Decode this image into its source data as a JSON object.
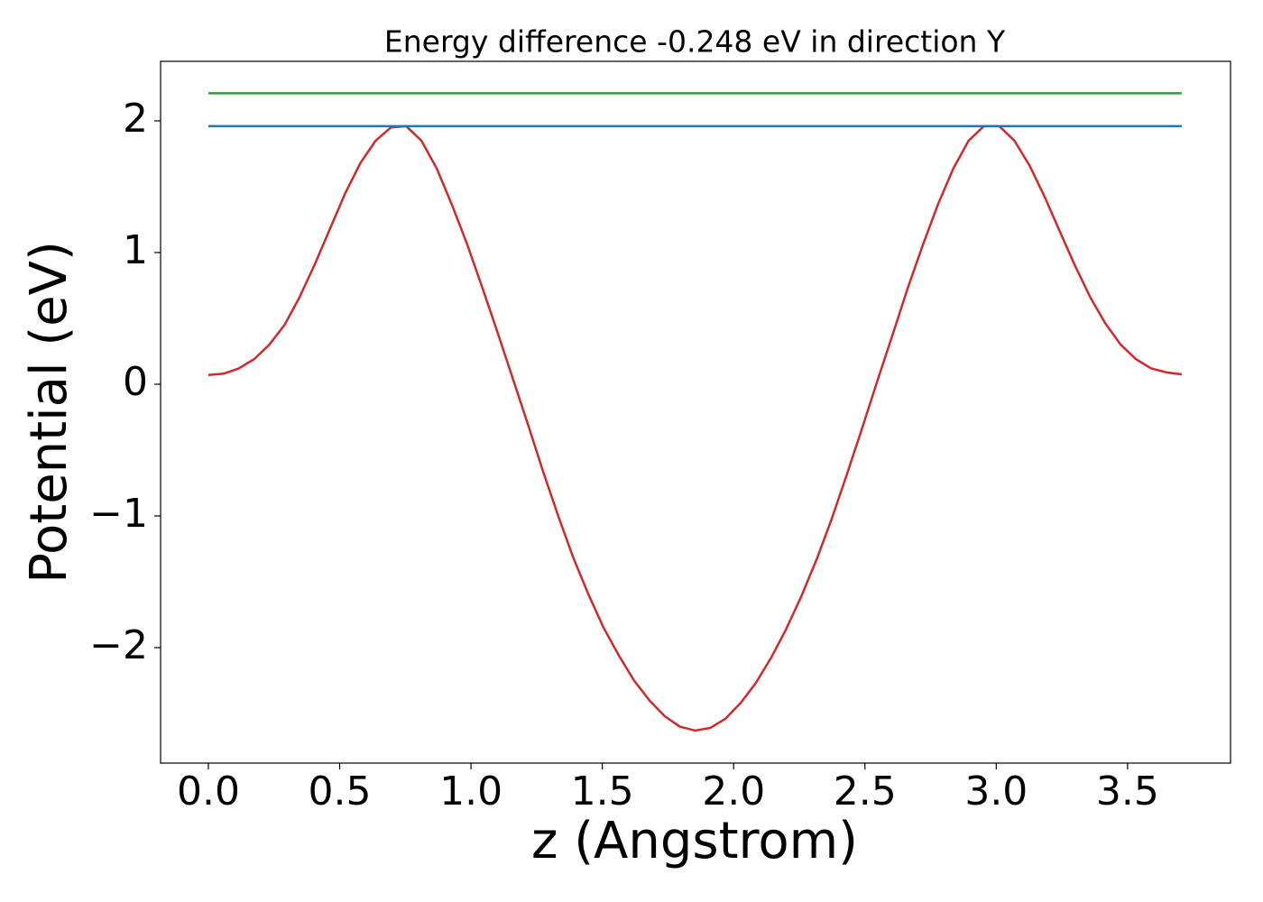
{
  "chart_data": {
    "type": "line",
    "title": "Energy difference -0.248 eV in direction Y",
    "xlabel": "z (Angstrom)",
    "ylabel": "Potential (eV)",
    "series": [
      {
        "color": "#d62728",
        "x": [
          0,
          0.058,
          0.116,
          0.174,
          0.232,
          0.29,
          0.347,
          0.405,
          0.463,
          0.521,
          0.579,
          0.637,
          0.695,
          0.753,
          0.811,
          0.869,
          0.926,
          0.984,
          1.042,
          1.1,
          1.158,
          1.216,
          1.274,
          1.332,
          1.39,
          1.448,
          1.505,
          1.563,
          1.621,
          1.679,
          1.737,
          1.795,
          1.853,
          1.911,
          1.969,
          2.027,
          2.084,
          2.142,
          2.2,
          2.258,
          2.316,
          2.374,
          2.432,
          2.49,
          2.548,
          2.606,
          2.663,
          2.721,
          2.779,
          2.837,
          2.895,
          2.953,
          3.011,
          3.069,
          3.127,
          3.185,
          3.242,
          3.3,
          3.358,
          3.416,
          3.474,
          3.532,
          3.59,
          3.648,
          3.706
        ],
        "values": [
          0.07,
          0.08,
          0.12,
          0.19,
          0.3,
          0.45,
          0.66,
          0.91,
          1.18,
          1.45,
          1.68,
          1.85,
          1.95,
          1.96,
          1.85,
          1.64,
          1.37,
          1.07,
          0.74,
          0.4,
          0.05,
          -0.3,
          -0.66,
          -1.0,
          -1.32,
          -1.6,
          -1.85,
          -2.06,
          -2.25,
          -2.4,
          -2.52,
          -2.6,
          -2.63,
          -2.61,
          -2.54,
          -2.42,
          -2.27,
          -2.08,
          -1.86,
          -1.61,
          -1.33,
          -1.02,
          -0.68,
          -0.33,
          0.03,
          0.38,
          0.73,
          1.06,
          1.37,
          1.64,
          1.85,
          1.96,
          1.96,
          1.85,
          1.66,
          1.42,
          1.16,
          0.9,
          0.66,
          0.46,
          0.3,
          0.19,
          0.12,
          0.09,
          0.075
        ]
      },
      {
        "color": "#1f77b4",
        "x": [
          0,
          3.706
        ],
        "values": [
          1.96,
          1.96
        ]
      },
      {
        "color": "#2ca02c",
        "x": [
          0,
          3.706
        ],
        "values": [
          2.21,
          2.21
        ]
      }
    ],
    "xlim": [
      -0.182,
      3.892
    ],
    "ylim": [
      -2.877,
      2.452
    ],
    "xticks": [
      {
        "value": 0,
        "label": "0.0"
      },
      {
        "value": 0.5,
        "label": "0.5"
      },
      {
        "value": 1,
        "label": "1.0"
      },
      {
        "value": 1.5,
        "label": "1.5"
      },
      {
        "value": 2,
        "label": "2.0"
      },
      {
        "value": 2.5,
        "label": "2.5"
      },
      {
        "value": 3,
        "label": "3.0"
      },
      {
        "value": 3.5,
        "label": "3.5"
      }
    ],
    "yticks": [
      {
        "value": -2,
        "label": "−2"
      },
      {
        "value": -1,
        "label": "−1"
      },
      0,
      1,
      2
    ],
    "grid": false
  }
}
